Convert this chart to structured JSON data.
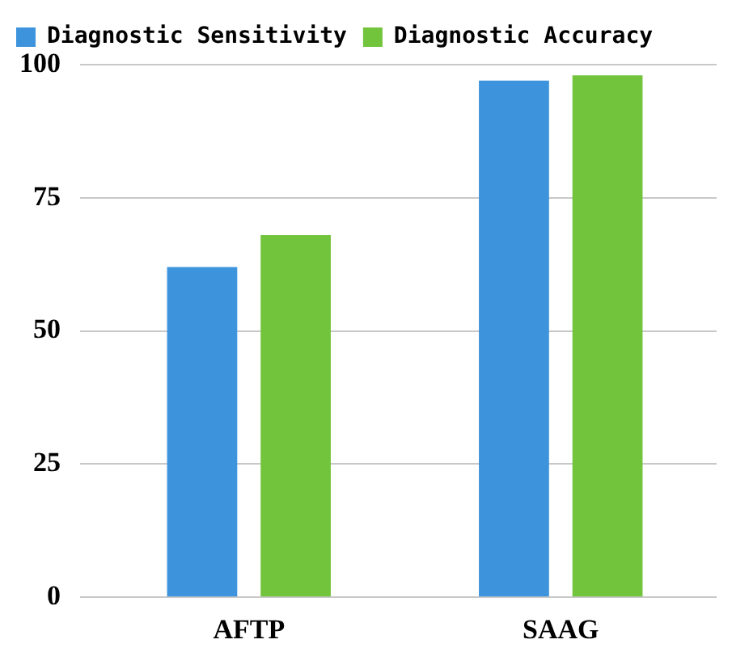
{
  "chart_data": {
    "type": "bar",
    "categories": [
      "AFTP",
      "SAAG"
    ],
    "series": [
      {
        "name": "Diagnostic Sensitivity",
        "color": "#3d93dc",
        "values": [
          62,
          97
        ]
      },
      {
        "name": "Diagnostic Accuracy",
        "color": "#72c43c",
        "values": [
          68,
          98
        ]
      }
    ],
    "ylim": [
      0,
      100
    ],
    "yticks": [
      0,
      25,
      50,
      75,
      100
    ],
    "grid": "y",
    "legend": "top left"
  }
}
